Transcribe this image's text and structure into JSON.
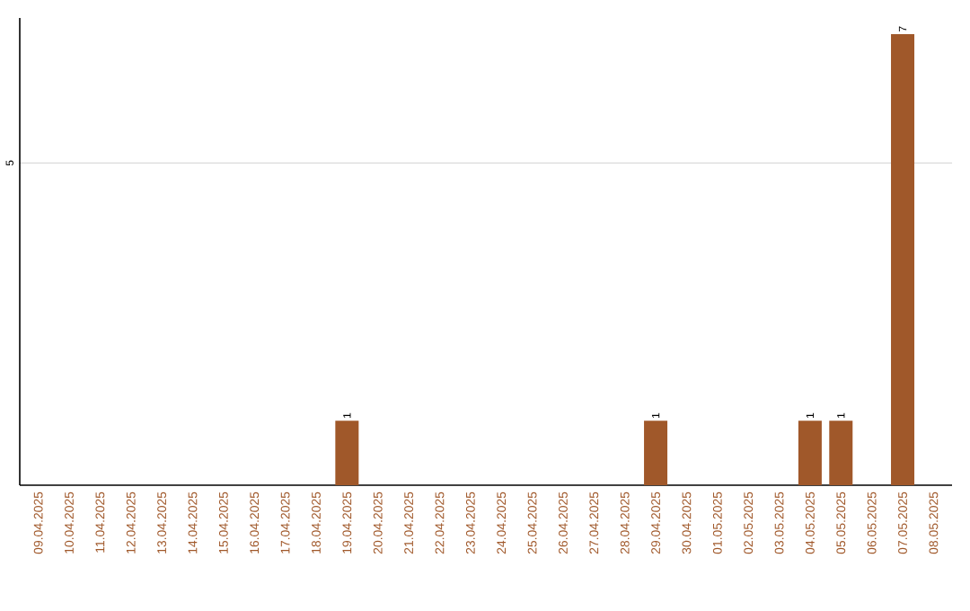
{
  "chart_data": {
    "type": "bar",
    "categories": [
      "09.04.2025",
      "10.04.2025",
      "11.04.2025",
      "12.04.2025",
      "13.04.2025",
      "14.04.2025",
      "15.04.2025",
      "16.04.2025",
      "17.04.2025",
      "18.04.2025",
      "19.04.2025",
      "20.04.2025",
      "21.04.2025",
      "22.04.2025",
      "23.04.2025",
      "24.04.2025",
      "25.04.2025",
      "26.04.2025",
      "27.04.2025",
      "28.04.2025",
      "29.04.2025",
      "30.04.2025",
      "01.05.2025",
      "02.05.2025",
      "03.05.2025",
      "04.05.2025",
      "05.05.2025",
      "06.05.2025",
      "07.05.2025",
      "08.05.2025"
    ],
    "values": [
      0,
      0,
      0,
      0,
      0,
      0,
      0,
      0,
      0,
      0,
      1,
      0,
      0,
      0,
      0,
      0,
      0,
      0,
      0,
      0,
      1,
      0,
      0,
      0,
      0,
      1,
      1,
      0,
      7,
      0
    ],
    "value_labels": [
      null,
      null,
      null,
      null,
      null,
      null,
      null,
      null,
      null,
      null,
      "1",
      null,
      null,
      null,
      null,
      null,
      null,
      null,
      null,
      null,
      "1",
      null,
      null,
      null,
      null,
      "1",
      "1",
      null,
      "7",
      null
    ],
    "color": "#a0582a",
    "ylim": [
      0,
      7.25
    ],
    "yticks": [
      5
    ],
    "grid": "y"
  }
}
